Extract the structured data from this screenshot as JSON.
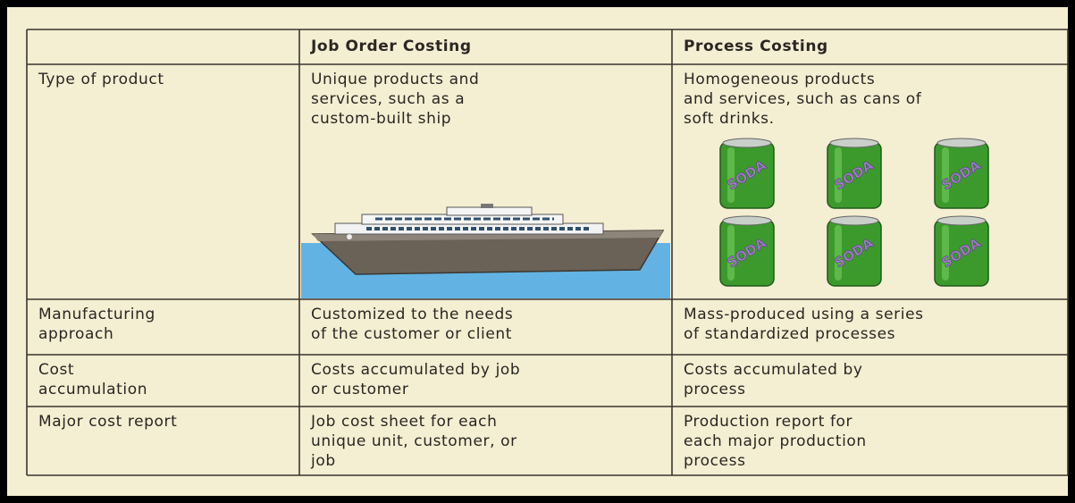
{
  "table": {
    "columns": [
      "Job Order Costing",
      "Process Costing"
    ],
    "rows": [
      [
        [
          "Type of product"
        ],
        [
          "Unique products and",
          "services, such as a",
          "custom-built ship"
        ],
        [
          "Homogeneous products",
          "and services, such as cans of",
          "soft drinks."
        ]
      ],
      [
        [
          "Manufacturing",
          "approach"
        ],
        [
          "Customized to the needs",
          "of the customer or client"
        ],
        [
          "Mass-produced using a series",
          "of standardized processes"
        ]
      ],
      [
        [
          "Cost",
          "accumulation"
        ],
        [
          "Costs accumulated by job",
          "or customer"
        ],
        [
          "Costs accumulated by",
          "process"
        ]
      ],
      [
        [
          "Major cost report"
        ],
        [
          "Job cost sheet for each",
          "unique unit, customer, or",
          "job"
        ],
        [
          "Production report for",
          "each major production",
          "process"
        ]
      ]
    ],
    "can_label": "SODA"
  }
}
